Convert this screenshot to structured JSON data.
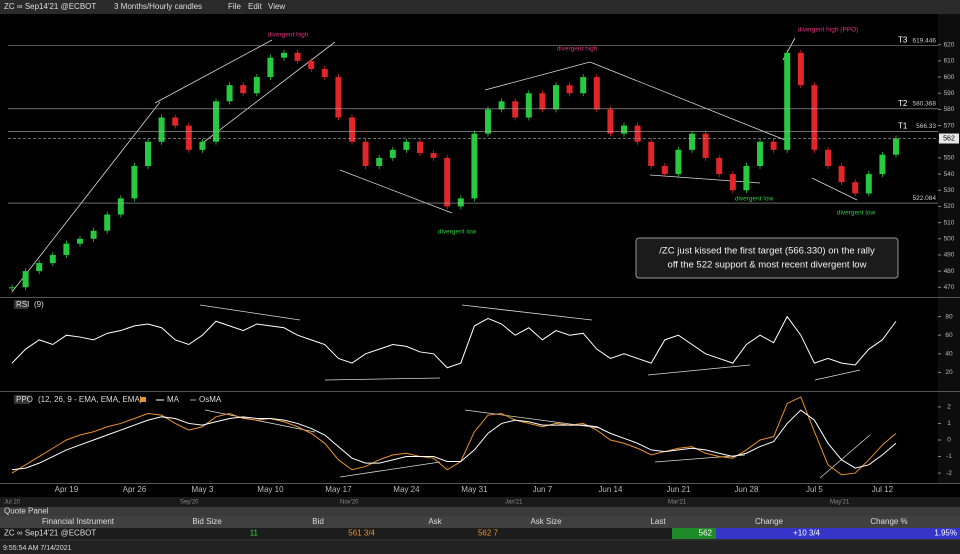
{
  "toolbar": {
    "symbol": "ZC ∞ Sep14'21 @ECBOT",
    "period": "3 Months/Hourly candles",
    "menu": [
      "File",
      "Edit",
      "View"
    ]
  },
  "chart_data": [
    {
      "type": "candles",
      "categories": [
        null,
        null,
        null,
        null,
        "Apr 19",
        null,
        null,
        null,
        null,
        "Apr 26",
        null,
        null,
        null,
        null,
        "May 3",
        null,
        null,
        null,
        null,
        "May 10",
        null,
        null,
        null,
        null,
        "May 17",
        null,
        null,
        null,
        null,
        "May 24",
        null,
        null,
        null,
        null,
        "May 31",
        null,
        null,
        null,
        null,
        "Jun 7",
        null,
        null,
        null,
        null,
        "Jun 14",
        null,
        null,
        null,
        null,
        "Jun 21",
        null,
        null,
        null,
        null,
        "Jun 28",
        null,
        null,
        null,
        null,
        "Jul 5",
        null,
        null,
        null,
        null,
        "Jul 12",
        null
      ],
      "values": [
        470,
        480,
        485,
        490,
        497,
        500,
        505,
        515,
        525,
        545,
        560,
        575,
        570,
        555,
        560,
        585,
        595,
        590,
        600,
        612,
        615,
        610,
        605,
        600,
        575,
        560,
        545,
        550,
        555,
        560,
        553,
        550,
        520,
        525,
        565,
        580,
        585,
        575,
        590,
        580,
        595,
        590,
        600,
        580,
        565,
        570,
        560,
        545,
        540,
        555,
        565,
        550,
        540,
        530,
        545,
        560,
        555,
        615,
        595,
        555,
        545,
        535,
        528,
        540,
        552,
        562
      ],
      "up_color": "#27c93f",
      "down_color": "#e0262b",
      "ylim": [
        464,
        639
      ],
      "yticks": [
        470,
        480,
        490,
        500,
        510,
        520,
        530,
        540,
        550,
        560,
        570,
        580,
        590,
        600,
        610,
        620
      ],
      "levels": [
        {
          "name": "T3",
          "value": 619.446
        },
        {
          "name": "T2",
          "value": 580.368
        },
        {
          "name": "T1",
          "value": 566.33
        },
        {
          "value": 522.084
        }
      ],
      "current_price": 562,
      "annotations": [
        "divergent high",
        "divergent high",
        "divergent high (PPO)",
        "divergent low",
        "divergent low",
        "divergent low"
      ],
      "note": [
        "/ZC just kissed the first target (566.330) on the rally",
        "off the 522 support & most recent divergent low"
      ]
    },
    {
      "type": "line",
      "title": "RSI",
      "params": "(9)",
      "color": "#ffffff",
      "values": [
        30,
        45,
        55,
        50,
        60,
        58,
        55,
        62,
        65,
        70,
        72,
        68,
        55,
        50,
        60,
        75,
        70,
        65,
        72,
        70,
        68,
        60,
        55,
        50,
        35,
        30,
        40,
        45,
        50,
        48,
        42,
        40,
        25,
        30,
        70,
        78,
        72,
        60,
        68,
        55,
        65,
        60,
        62,
        45,
        35,
        40,
        35,
        30,
        55,
        60,
        50,
        40,
        35,
        30,
        50,
        60,
        52,
        80,
        60,
        30,
        35,
        30,
        28,
        45,
        55,
        75
      ],
      "ylim": [
        0,
        100
      ],
      "yticks": [
        20,
        40,
        60,
        80
      ]
    },
    {
      "type": "line",
      "title": "PPO",
      "params": "(12, 26, 9 - EMA, EMA, EMA)",
      "osma_label": "OsMA",
      "series": [
        {
          "color": "#e8912d",
          "values": [
            -2.0,
            -1.5,
            -1.0,
            -0.5,
            0,
            0.3,
            0.5,
            0.8,
            1.0,
            1.3,
            1.6,
            1.5,
            1.0,
            0.6,
            0.8,
            1.4,
            1.6,
            1.3,
            1.2,
            1.3,
            1.1,
            0.8,
            0.4,
            -0.2,
            -1.2,
            -1.8,
            -1.6,
            -1.2,
            -0.9,
            -0.8,
            -1.0,
            -1.1,
            -1.8,
            -1.3,
            0.5,
            1.5,
            1.6,
            1.2,
            1.0,
            0.8,
            1.0,
            0.9,
            1.0,
            0.6,
            0,
            -0.2,
            -0.5,
            -0.9,
            -0.7,
            -0.5,
            -0.4,
            -0.8,
            -1.0,
            -1.1,
            -0.6,
            0,
            0.2,
            2.2,
            2.6,
            0.5,
            -1.5,
            -2.1,
            -2.0,
            -1.2,
            -0.3,
            0.4
          ]
        },
        {
          "name": "MA",
          "color": "#ffffff",
          "values": [
            -1.8,
            -1.7,
            -1.4,
            -1.0,
            -0.6,
            -0.3,
            0,
            0.3,
            0.6,
            0.9,
            1.2,
            1.4,
            1.3,
            1.0,
            0.9,
            1.1,
            1.3,
            1.4,
            1.3,
            1.3,
            1.2,
            1.0,
            0.7,
            0.3,
            -0.4,
            -1.1,
            -1.4,
            -1.4,
            -1.2,
            -1.0,
            -1.0,
            -1.0,
            -1.3,
            -1.3,
            -0.6,
            0.4,
            1.0,
            1.2,
            1.1,
            0.9,
            0.9,
            0.9,
            0.9,
            0.8,
            0.4,
            0.1,
            -0.2,
            -0.6,
            -0.7,
            -0.6,
            -0.5,
            -0.6,
            -0.8,
            -1.0,
            -0.8,
            -0.4,
            -0.1,
            1.0,
            1.8,
            1.2,
            -0.2,
            -1.2,
            -1.7,
            -1.5,
            -0.9,
            -0.2
          ]
        }
      ],
      "ylim": [
        -2.6,
        2.9
      ],
      "yticks": [
        -2,
        -1,
        0,
        1,
        2
      ]
    }
  ],
  "overview": [
    "Jul 20",
    "Sep'20",
    "Nov'20",
    "Jan'21",
    "Mar'21",
    "May'21"
  ],
  "quote_panel": {
    "title": "Quote Panel",
    "columns": [
      "Financial Instrument",
      "Bid Size",
      "Bid",
      "Ask",
      "Ask Size",
      "Last",
      "Change",
      "Change %"
    ],
    "row": {
      "instrument": "ZC ∞ Sep14'21 @ECBOT",
      "bid_size": "11",
      "bid": "561 3/4",
      "ask": "562 7",
      "last": "562",
      "change": "+10 3/4",
      "change_pct": "1.95%"
    }
  },
  "status": "9:55:54 AM 7/14/2021"
}
